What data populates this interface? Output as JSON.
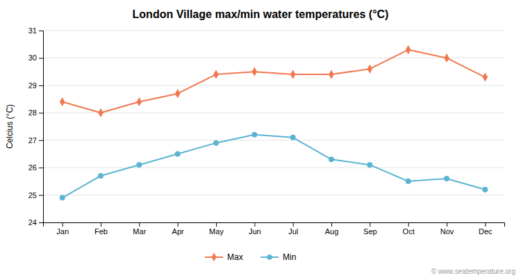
{
  "chart_data": {
    "type": "line",
    "title": "London Village max/min water temperatures (°C)",
    "ylabel": "Celcius (°C)",
    "categories": [
      "Jan",
      "Feb",
      "Mar",
      "Apr",
      "May",
      "Jun",
      "Jul",
      "Aug",
      "Sep",
      "Oct",
      "Nov",
      "Dec"
    ],
    "series": [
      {
        "name": "Max",
        "color": "#f07850",
        "marker": "diamond",
        "values": [
          28.4,
          28.0,
          28.4,
          28.7,
          29.4,
          29.5,
          29.4,
          29.4,
          29.6,
          30.3,
          30.0,
          29.3
        ]
      },
      {
        "name": "Min",
        "color": "#5ab4d2",
        "marker": "circle",
        "values": [
          24.9,
          25.7,
          26.1,
          26.5,
          26.9,
          27.2,
          27.1,
          26.3,
          26.1,
          25.5,
          25.6,
          25.2
        ]
      }
    ],
    "ylim": [
      24,
      31
    ],
    "yticks": [
      24,
      25,
      26,
      27,
      28,
      29,
      30,
      31
    ],
    "grid": true,
    "legend": "bottom",
    "annotations": [
      "© www.seatemperature.org"
    ]
  }
}
